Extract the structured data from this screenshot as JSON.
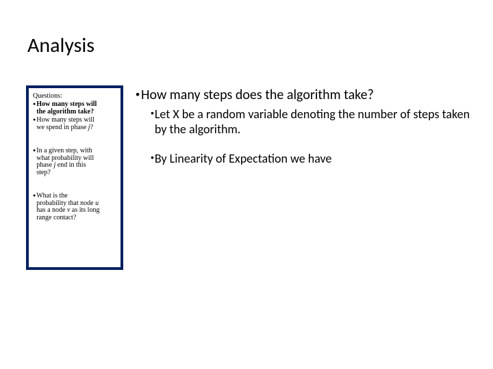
{
  "title": "Analysis",
  "sidebar": {
    "header": "Questions:",
    "block1": {
      "q1_a": "How many steps will",
      "q1_b": "the algorithm take?",
      "q2_a": "How many steps will",
      "q2_b": "we spend in phase ",
      "q2_c": "j",
      "q2_d": "?"
    },
    "block2": {
      "q3_a": "In a given step, with",
      "q3_b": "what probability will",
      "q3_c": "phase ",
      "q3_d": "j",
      "q3_e": " end in this",
      "q3_f": "step?"
    },
    "block3": {
      "q4_a": "What is the",
      "q4_b": "probability that node ",
      "q4_c": "u",
      "q4_d": "has a node ",
      "q4_e": "v",
      "q4_f": " as its long",
      "q4_g": "range contact?"
    }
  },
  "main": {
    "line1": "How many steps does the algorithm take?",
    "sub1": "Let X be a random variable denoting the number of steps taken by the algorithm.",
    "sub2": "By Linearity of Expectation we have"
  },
  "colors": {
    "border": "#002060",
    "text": "#000000",
    "background": "#ffffff"
  },
  "fonts": {
    "title_size": 30,
    "main_size": 20,
    "sub_size": 18,
    "sidebar_size": 10
  }
}
